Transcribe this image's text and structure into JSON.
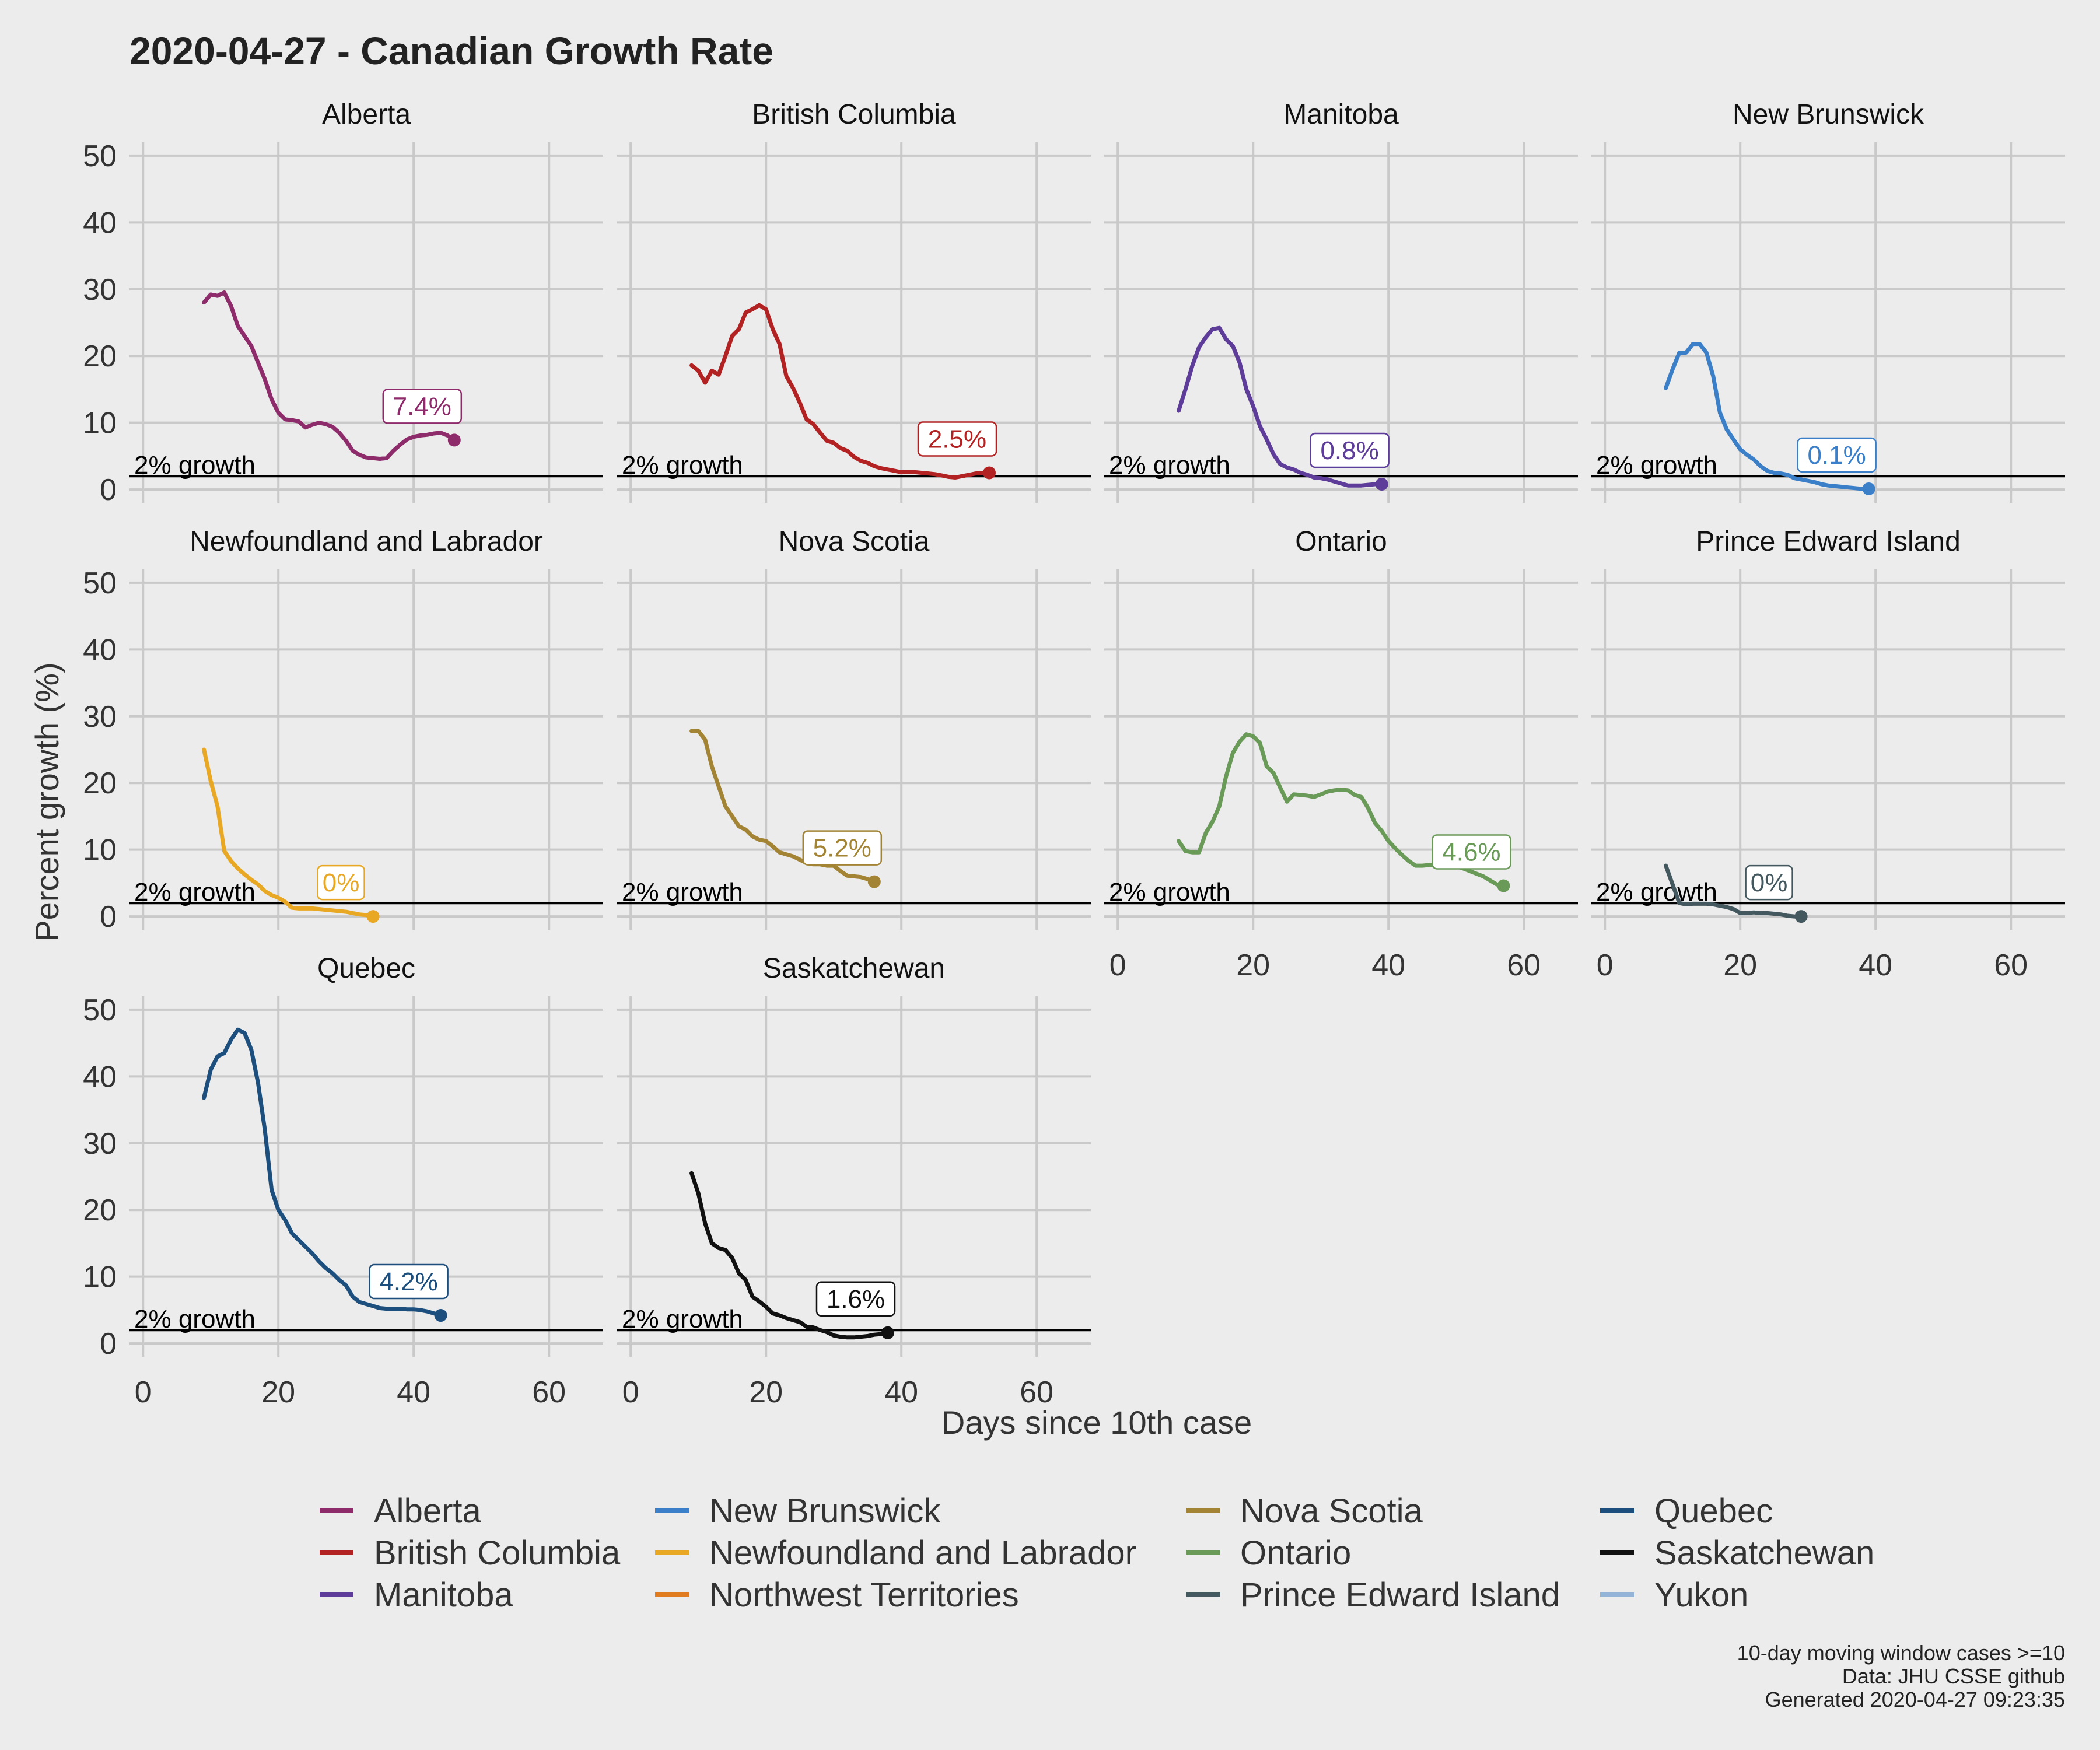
{
  "chart_data": {
    "type": "line",
    "title": "2020-04-27  - Canadian Growth Rate",
    "xlabel": "Days since 10th case",
    "ylabel": "Percent growth (%)",
    "xlim": [
      -2,
      68
    ],
    "ylim": [
      -2,
      52
    ],
    "x_ticks": [
      0,
      20,
      40,
      60
    ],
    "y_ticks": [
      0,
      10,
      20,
      30,
      40,
      50
    ],
    "grid": true,
    "reference_line": {
      "y": 2,
      "label": "2% growth"
    },
    "legend_position": "bottom",
    "legend": [
      {
        "name": "Alberta",
        "color": "#8e2c6b"
      },
      {
        "name": "British Columbia",
        "color": "#b22222"
      },
      {
        "name": "Manitoba",
        "color": "#5e3c99"
      },
      {
        "name": "New Brunswick",
        "color": "#3a7fc8"
      },
      {
        "name": "Newfoundland and Labrador",
        "color": "#e8a824"
      },
      {
        "name": "Northwest Territories",
        "color": "#e07b1f"
      },
      {
        "name": "Nova Scotia",
        "color": "#a38435"
      },
      {
        "name": "Ontario",
        "color": "#6a9a58"
      },
      {
        "name": "Prince Edward Island",
        "color": "#44585f"
      },
      {
        "name": "Quebec",
        "color": "#1c4f7e"
      },
      {
        "name": "Saskatchewan",
        "color": "#111111"
      },
      {
        "name": "Yukon",
        "color": "#93b4d6"
      }
    ],
    "panels": [
      {
        "name": "Alberta",
        "color": "#8e2c6b",
        "label": "7.4%",
        "x": [
          9,
          10,
          11,
          12,
          13,
          14,
          15,
          16,
          17,
          18,
          19,
          20,
          21,
          22,
          23,
          24,
          25,
          26,
          27,
          28,
          29,
          30,
          31,
          32,
          33,
          34,
          35,
          36,
          37,
          38,
          39,
          40,
          41,
          42,
          43,
          44,
          45,
          46
        ],
        "y": [
          28,
          29.2,
          29,
          29.5,
          27.5,
          24.5,
          23,
          21.5,
          19,
          16.5,
          13.5,
          11.5,
          10.5,
          10.4,
          10.2,
          9.3,
          9.7,
          10,
          9.8,
          9.4,
          8.5,
          7.3,
          5.8,
          5.2,
          4.8,
          4.7,
          4.6,
          4.7,
          5.8,
          6.7,
          7.5,
          7.9,
          8.1,
          8.2,
          8.4,
          8.5,
          8.1,
          7.4
        ]
      },
      {
        "name": "British Columbia",
        "color": "#b22222",
        "label": "2.5%",
        "x": [
          9,
          10,
          11,
          12,
          13,
          14,
          15,
          16,
          17,
          18,
          19,
          20,
          21,
          22,
          23,
          24,
          25,
          26,
          27,
          28,
          29,
          30,
          31,
          32,
          33,
          34,
          35,
          36,
          37,
          38,
          39,
          40,
          41,
          42,
          43,
          44,
          45,
          46,
          47,
          48,
          49,
          50,
          51,
          52,
          53
        ],
        "y": [
          18.6,
          17.8,
          16,
          17.8,
          17.2,
          20,
          23,
          24,
          26.5,
          27,
          27.6,
          27,
          24,
          21.8,
          17,
          15.2,
          13,
          10.5,
          9.8,
          8.5,
          7.3,
          7,
          6.2,
          5.8,
          4.9,
          4.3,
          4,
          3.5,
          3.2,
          3,
          2.8,
          2.6,
          2.6,
          2.6,
          2.5,
          2.4,
          2.3,
          2.1,
          1.9,
          1.8,
          2,
          2.2,
          2.4,
          2.5,
          2.5
        ]
      },
      {
        "name": "Manitoba",
        "color": "#5e3c99",
        "label": "0.8%",
        "x": [
          9,
          10,
          11,
          12,
          13,
          14,
          15,
          16,
          17,
          18,
          19,
          20,
          21,
          22,
          23,
          24,
          25,
          26,
          27,
          28,
          29,
          30,
          31,
          32,
          33,
          34,
          35,
          36,
          37,
          38,
          39
        ],
        "y": [
          11.8,
          15,
          18.5,
          21.3,
          22.8,
          24,
          24.2,
          22.5,
          21.5,
          19,
          15,
          12.5,
          9.5,
          7.5,
          5.3,
          3.8,
          3.3,
          3,
          2.5,
          2.2,
          1.8,
          1.7,
          1.5,
          1.2,
          0.9,
          0.6,
          0.6,
          0.6,
          0.7,
          0.8,
          0.8
        ]
      },
      {
        "name": "New Brunswick",
        "color": "#3a7fc8",
        "label": "0.1%",
        "x": [
          9,
          10,
          11,
          12,
          13,
          14,
          15,
          16,
          17,
          18,
          19,
          20,
          21,
          22,
          23,
          24,
          25,
          26,
          27,
          28,
          29,
          30,
          31,
          32,
          33,
          34,
          35,
          36,
          37,
          38,
          39
        ],
        "y": [
          15.2,
          18,
          20.5,
          20.5,
          21.8,
          21.8,
          20.5,
          17,
          11.5,
          9,
          7.5,
          6,
          5.2,
          4.5,
          3.5,
          2.8,
          2.5,
          2.4,
          2.2,
          1.7,
          1.5,
          1.3,
          1.1,
          0.8,
          0.6,
          0.5,
          0.4,
          0.3,
          0.2,
          0.1,
          0.1
        ]
      },
      {
        "name": "Newfoundland and Labrador",
        "color": "#e8a824",
        "label": "0%",
        "x": [
          9,
          10,
          11,
          12,
          13,
          14,
          15,
          16,
          17,
          18,
          19,
          20,
          21,
          22,
          23,
          24,
          25,
          26,
          27,
          28,
          29,
          30,
          31,
          32,
          33,
          34
        ],
        "y": [
          25,
          20.3,
          16.5,
          9.8,
          8.3,
          7.2,
          6.3,
          5.5,
          4.8,
          3.8,
          3.2,
          2.8,
          2.2,
          1.3,
          1.2,
          1.2,
          1.2,
          1.1,
          1,
          0.9,
          0.8,
          0.7,
          0.5,
          0.3,
          0.2,
          0
        ]
      },
      {
        "name": "Nova Scotia",
        "color": "#a38435",
        "label": "5.2%",
        "x": [
          9,
          10,
          11,
          12,
          13,
          14,
          15,
          16,
          17,
          18,
          19,
          20,
          21,
          22,
          23,
          24,
          25,
          26,
          27,
          28,
          29,
          30,
          31,
          32,
          33,
          34,
          35,
          36
        ],
        "y": [
          27.8,
          27.8,
          26.5,
          22.5,
          19.5,
          16.5,
          15,
          13.5,
          13,
          12,
          11.5,
          11.3,
          10.5,
          9.6,
          9.3,
          9,
          8.5,
          8,
          7.8,
          7.8,
          7.6,
          7.6,
          6.8,
          6.1,
          6,
          5.9,
          5.6,
          5.2
        ]
      },
      {
        "name": "Ontario",
        "color": "#6a9a58",
        "label": "4.6%",
        "x": [
          9,
          10,
          11,
          12,
          13,
          14,
          15,
          16,
          17,
          18,
          19,
          20,
          21,
          22,
          23,
          24,
          25,
          26,
          27,
          28,
          29,
          30,
          31,
          32,
          33,
          34,
          35,
          36,
          37,
          38,
          39,
          40,
          41,
          42,
          43,
          44,
          45,
          46,
          47,
          48,
          49,
          50,
          51,
          52,
          53,
          54,
          55,
          56,
          57
        ],
        "y": [
          11.3,
          9.8,
          9.6,
          9.6,
          12.5,
          14.2,
          16.5,
          21,
          24.5,
          26.2,
          27.3,
          27,
          26,
          22.5,
          21.5,
          19.3,
          17.2,
          18.3,
          18.2,
          18.1,
          17.9,
          18.3,
          18.7,
          18.9,
          19,
          18.9,
          18.2,
          17.9,
          16.2,
          14,
          12.8,
          11.3,
          10.2,
          9.2,
          8.3,
          7.6,
          7.6,
          7.7,
          7.6,
          7.6,
          7.5,
          7.5,
          7.2,
          6.8,
          6.4,
          6,
          5.4,
          4.8,
          4.6
        ]
      },
      {
        "name": "Prince Edward Island",
        "color": "#44585f",
        "label": "0%",
        "x": [
          9,
          10,
          11,
          12,
          13,
          14,
          15,
          16,
          17,
          18,
          19,
          20,
          21,
          22,
          23,
          24,
          25,
          26,
          27,
          28,
          29
        ],
        "y": [
          7.6,
          4.8,
          2,
          1.8,
          1.9,
          1.9,
          1.9,
          1.8,
          1.6,
          1.4,
          1.1,
          0.5,
          0.5,
          0.6,
          0.5,
          0.5,
          0.4,
          0.3,
          0.1,
          0,
          0
        ]
      },
      {
        "name": "Quebec",
        "color": "#1c4f7e",
        "label": "4.2%",
        "x": [
          9,
          10,
          11,
          12,
          13,
          14,
          15,
          16,
          17,
          18,
          19,
          20,
          21,
          22,
          23,
          24,
          25,
          26,
          27,
          28,
          29,
          30,
          31,
          32,
          33,
          34,
          35,
          36,
          37,
          38,
          39,
          40,
          41,
          42,
          43,
          44
        ],
        "y": [
          36.8,
          41,
          43,
          43.5,
          45.5,
          47,
          46.5,
          44,
          39,
          32,
          23,
          20,
          18.5,
          16.5,
          15.5,
          14.5,
          13.5,
          12.3,
          11.3,
          10.5,
          9.5,
          8.7,
          7,
          6.2,
          5.9,
          5.6,
          5.3,
          5.2,
          5.2,
          5.2,
          5.1,
          5.1,
          5,
          4.8,
          4.5,
          4.2
        ]
      },
      {
        "name": "Saskatchewan",
        "color": "#111111",
        "label": "1.6%",
        "x": [
          9,
          10,
          11,
          12,
          13,
          14,
          15,
          16,
          17,
          18,
          19,
          20,
          21,
          22,
          23,
          24,
          25,
          26,
          27,
          28,
          29,
          30,
          31,
          32,
          33,
          34,
          35,
          36,
          37,
          38
        ],
        "y": [
          25.5,
          22.5,
          18,
          15,
          14.3,
          14,
          12.8,
          10.5,
          9.5,
          7,
          6.3,
          5.5,
          4.5,
          4.2,
          3.8,
          3.5,
          3.2,
          2.5,
          2.4,
          2,
          1.7,
          1.2,
          1,
          0.9,
          0.9,
          1,
          1.1,
          1.3,
          1.4,
          1.6
        ]
      }
    ],
    "caption": [
      "10-day moving window cases >=10",
      "Data: JHU CSSE github",
      "Generated 2020-04-27 09:23:35"
    ]
  }
}
